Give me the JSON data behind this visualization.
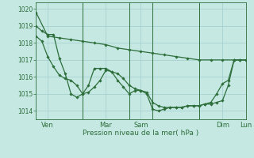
{
  "xlabel": "Pression niveau de la mer( hPa )",
  "background_color": "#c5e8e3",
  "grid_color": "#a0cccc",
  "line_color": "#2d6e3a",
  "text_color": "#2d6e3a",
  "ylim": [
    1013.5,
    1020.4
  ],
  "yticks": [
    1014,
    1015,
    1016,
    1017,
    1018,
    1019,
    1020
  ],
  "xlim": [
    0,
    216
  ],
  "vlines": [
    48,
    96,
    120,
    168,
    216
  ],
  "xtick_pos": [
    12,
    72,
    108,
    192
  ],
  "xtick_labels": [
    "Ven",
    "Mar",
    "Sam",
    "Dim"
  ],
  "xtick2_pos": [
    216
  ],
  "xtick2_labels": [
    "Lun"
  ],
  "s1x": [
    0,
    12,
    24,
    36,
    48,
    60,
    72,
    84,
    96,
    108,
    120,
    132,
    144,
    156,
    168,
    180,
    192,
    204,
    216
  ],
  "s1y": [
    1019.8,
    1018.4,
    1018.3,
    1018.2,
    1018.1,
    1018.0,
    1017.9,
    1017.7,
    1017.6,
    1017.5,
    1017.4,
    1017.3,
    1017.2,
    1017.1,
    1017.0,
    1017.0,
    1017.0,
    1017.0,
    1017.0
  ],
  "s2x": [
    0,
    6,
    12,
    18,
    24,
    30,
    36,
    42,
    48,
    54,
    60,
    66,
    72,
    78,
    84,
    90,
    96,
    102,
    108,
    114,
    120,
    126,
    132,
    138,
    144,
    150,
    156,
    162,
    168,
    174,
    180,
    186,
    192,
    198,
    204,
    210,
    216
  ],
  "s2y": [
    1018.4,
    1018.1,
    1017.2,
    1016.6,
    1016.1,
    1015.9,
    1015.8,
    1015.5,
    1015.0,
    1015.1,
    1015.4,
    1015.8,
    1016.4,
    1016.3,
    1016.2,
    1015.9,
    1015.5,
    1015.3,
    1015.2,
    1015.1,
    1014.5,
    1014.3,
    1014.2,
    1014.2,
    1014.2,
    1014.2,
    1014.3,
    1014.3,
    1014.3,
    1014.4,
    1014.4,
    1014.5,
    1014.6,
    1015.5,
    1017.0,
    1017.0,
    1017.0
  ],
  "s3x": [
    0,
    6,
    12,
    18,
    24,
    30,
    36,
    42,
    48,
    54,
    60,
    66,
    72,
    78,
    84,
    90,
    96,
    102,
    108,
    114,
    120,
    126,
    132,
    138,
    144,
    150,
    156,
    162,
    168,
    174,
    180,
    186,
    192,
    198,
    204,
    210,
    216
  ],
  "s3y": [
    1019.0,
    1018.7,
    1018.5,
    1018.5,
    1017.1,
    1016.2,
    1015.0,
    1014.8,
    1015.0,
    1015.5,
    1016.5,
    1016.5,
    1016.5,
    1016.3,
    1015.8,
    1015.4,
    1015.0,
    1015.2,
    1015.2,
    1015.0,
    1014.1,
    1014.0,
    1014.1,
    1014.2,
    1014.2,
    1014.2,
    1014.3,
    1014.3,
    1014.3,
    1014.4,
    1014.5,
    1015.0,
    1015.6,
    1015.8,
    1017.0,
    1017.0,
    1017.0
  ]
}
